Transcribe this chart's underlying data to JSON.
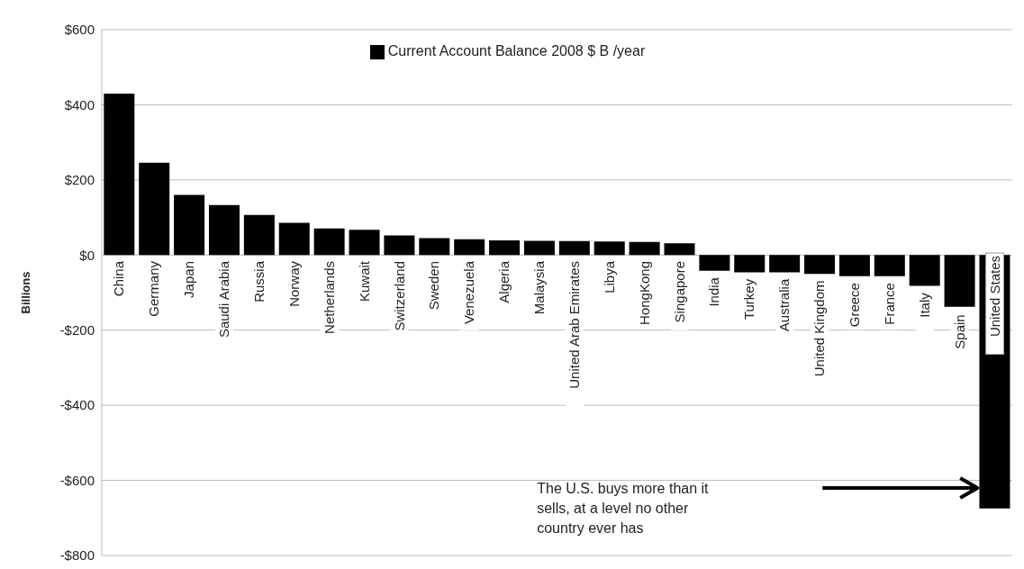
{
  "chart_data": {
    "type": "bar",
    "ylabel": "Billions",
    "categories": [
      "China",
      "Germany",
      "Japan",
      "Saudi Arabia",
      "Russia",
      "Norway",
      "Netherlands",
      "Kuwait",
      "Switzerland",
      "Sweden",
      "Venezuela",
      "Algeria",
      "Malaysia",
      "United Arab Emirates",
      "Libya",
      "HongKong",
      "Singapore",
      "India",
      "Turkey",
      "Australia",
      "United Kingdom",
      "Greece",
      "France",
      "Italy",
      "Spain",
      "United States"
    ],
    "series": [
      {
        "name": "Current Account Balance 2008 $ B /year",
        "color": "#000000",
        "values": [
          430,
          246,
          160,
          133,
          107,
          86,
          71,
          67,
          52,
          45,
          42,
          39,
          38,
          37,
          36,
          35,
          31,
          -42,
          -46,
          -46,
          -50,
          -56,
          -56,
          -82,
          -138,
          -675
        ]
      }
    ],
    "ylim": [
      -800,
      600
    ],
    "yticks": [
      {
        "value": -800,
        "label": "-$800"
      },
      {
        "value": -600,
        "label": "-$600"
      },
      {
        "value": -400,
        "label": "-$400"
      },
      {
        "value": -200,
        "label": "-$200"
      },
      {
        "value": 0,
        "label": "$0"
      },
      {
        "value": 200,
        "label": "$200"
      },
      {
        "value": 400,
        "label": "$400"
      },
      {
        "value": 600,
        "label": "$600"
      }
    ],
    "grid": "y",
    "legend": "top",
    "annotations": [
      "The U.S. buys more than it sells, at a level no other country ever has"
    ]
  }
}
